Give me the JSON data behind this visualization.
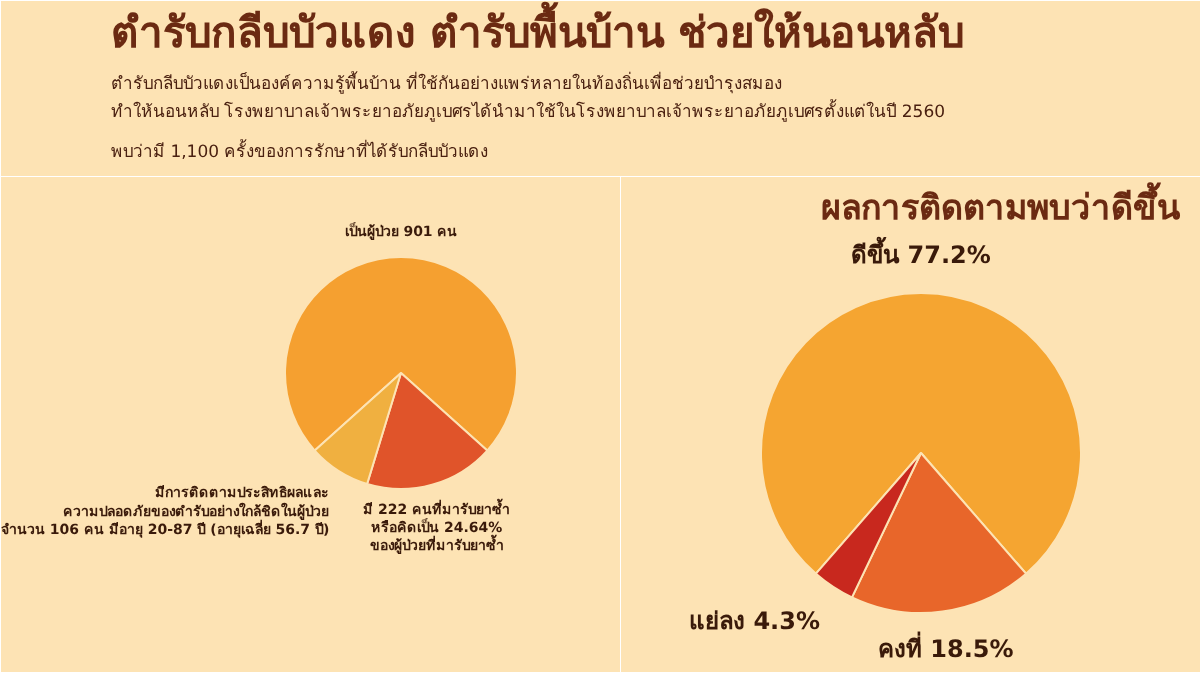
{
  "chart_data": [
    {
      "type": "pie",
      "title": "ตำรับกลีบบัวแดง ตำรับพื้นบ้าน ช่วยให้นอนหลับ",
      "subtitle": "ตำรับกลีบบัวแดงเป็นองค์ความรู้พื้นบ้าน ที่ใช้กันอย่างแพร่หลายในท้องถิ่นเพื่อช่วยบำรุงสมอง\nทำให้นอนหลับ โรงพยาบาลเจ้าพระยาอภัยภูเบศรได้นำมาใช้ในโรงพยาบาลเจ้าพระยาอภัยภูเบศรตั้งแต่ในปี 2560",
      "annotations": [
        "พบว่ามี 1,100 ครั้งของการรักษาที่ได้รับกลีบบัวแดง"
      ],
      "categories": [
        "เป็นผู้ป่วย 901 คน",
        "มี 222 คนที่มารับยาซ้ำ\nหรือคิดเป็น 24.64%\nของผู้ป่วยที่มารับยาซ้ำ",
        "มีการติดตามประสิทธิผลและ\nความปลอดภัยของตำรับอย่างใกล้ชิดในผู้ป่วย\nจำนวน 106 คน มีอายุ 20-87 ปี (อายุเฉลี่ย 56.7 ปี)"
      ],
      "values": [
        901,
        222,
        106
      ],
      "colors": [
        "#f5a030",
        "#e0542a",
        "#f0b040"
      ]
    },
    {
      "type": "pie",
      "title": "ผลการติดตามพบว่าดีขึ้น",
      "categories": [
        "ดีขึ้น",
        "คงที่",
        "แย่ลง"
      ],
      "values": [
        77.2,
        18.5,
        4.3
      ],
      "value_labels": [
        "77.2%",
        "18.5%",
        "4.3%"
      ],
      "colors": [
        "#f5a531",
        "#e8662a",
        "#c8281e"
      ]
    }
  ]
}
